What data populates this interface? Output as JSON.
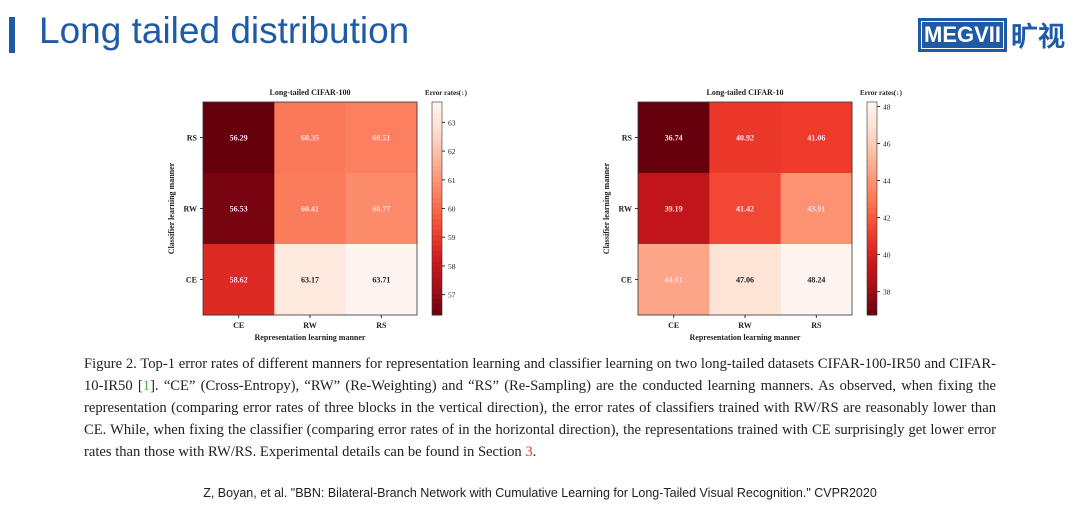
{
  "slide": {
    "title": "Long tailed distribution",
    "logo": {
      "text": "MEGVII",
      "cn": "旷视",
      "color": "#1f5aa6"
    }
  },
  "chart_data": [
    {
      "type": "heatmap",
      "title": "Long-tailed CIFAR-100",
      "xlabel": "Representation learning manner",
      "ylabel": "Classifier learning manner",
      "x_categories": [
        "CE",
        "RW",
        "RS"
      ],
      "y_categories": [
        "RS",
        "RW",
        "CE"
      ],
      "values": [
        [
          56.29,
          60.35,
          60.51
        ],
        [
          56.53,
          60.41,
          60.77
        ],
        [
          58.62,
          63.17,
          63.71
        ]
      ],
      "colorbar": {
        "label": "Error rates(↓)",
        "range": [
          56.29,
          63.71
        ],
        "ticks": [
          57,
          58,
          59,
          60,
          61,
          62,
          63
        ],
        "colormap": "Reds_r"
      }
    },
    {
      "type": "heatmap",
      "title": "Long-tailed CIFAR-10",
      "xlabel": "Representation learning manner",
      "ylabel": "Classifier learning manner",
      "x_categories": [
        "CE",
        "RW",
        "RS"
      ],
      "y_categories": [
        "RS",
        "RW",
        "CE"
      ],
      "values": [
        [
          36.74,
          40.92,
          41.06
        ],
        [
          39.19,
          41.42,
          43.91
        ],
        [
          44.61,
          47.06,
          48.24
        ]
      ],
      "colorbar": {
        "label": "Error rates(↓)",
        "range": [
          36.74,
          48.24
        ],
        "ticks": [
          38,
          40,
          42,
          44,
          46,
          48
        ],
        "colormap": "Reds_r"
      }
    }
  ],
  "caption": {
    "part1": "Figure 2. Top-1 error rates of different manners for representation learning and classifier learning on two long-tailed datasets CIFAR-100-IR50 and CIFAR-10-IR50 [",
    "cite": "1",
    "part2": "]. “CE” (Cross-Entropy), “RW” (Re-Weighting) and “RS” (Re-Sampling) are the conducted learning manners. As observed, when fixing the representation (comparing error rates of three blocks in the vertical direction), the error rates of classifiers trained with RW/RS are reasonably lower than CE. While, when fixing the classifier (comparing error rates of in the horizontal direction), the representations trained with CE surprisingly get lower error rates than those with RW/RS. Experimental details can be found in Section ",
    "section": "3",
    "part3": "."
  },
  "reference": "Z, Boyan, et al. \"BBN: Bilateral-Branch Network with Cumulative Learning for Long-Tailed Visual Recognition.\" CVPR2020"
}
